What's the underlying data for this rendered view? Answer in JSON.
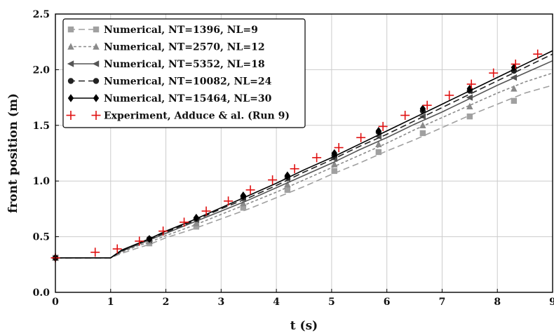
{
  "chart_data": {
    "type": "line",
    "title": "",
    "xlabel": "t (s)",
    "ylabel": "front position (m)",
    "xlim": [
      0,
      9
    ],
    "ylim": [
      0,
      2.5
    ],
    "xticks": [
      "0",
      "1",
      "2",
      "3",
      "4",
      "5",
      "6",
      "7",
      "8",
      "9"
    ],
    "yticks": [
      "0.0",
      "0.5",
      "1.0",
      "1.5",
      "2.0",
      "2.5"
    ],
    "grid": true,
    "legend_position": "top-left",
    "series": [
      {
        "name": "Numerical, NT=1396, NL=9",
        "color": "#a0a0a0",
        "dash": "dashed",
        "marker": "square",
        "x": [
          0,
          1.0,
          1.2,
          1.5,
          1.7,
          2.0,
          2.5,
          3.0,
          3.5,
          4.0,
          4.5,
          5.0,
          5.5,
          6.0,
          6.5,
          7.0,
          7.5,
          8.0,
          8.5,
          9.0
        ],
        "y": [
          0.31,
          0.31,
          0.35,
          0.4,
          0.43,
          0.49,
          0.57,
          0.66,
          0.75,
          0.85,
          0.95,
          1.06,
          1.16,
          1.27,
          1.37,
          1.48,
          1.59,
          1.69,
          1.79,
          1.86
        ],
        "marker_x": [
          0,
          1.7,
          2.55,
          3.4,
          4.2,
          5.05,
          5.85,
          6.65,
          7.5,
          8.3
        ],
        "marker_y": [
          0.31,
          0.44,
          0.59,
          0.76,
          0.92,
          1.09,
          1.26,
          1.43,
          1.58,
          1.72
        ]
      },
      {
        "name": "Numerical, NT=2570, NL=12",
        "color": "#8a8a8a",
        "dash": "dotted",
        "marker": "triangle-up",
        "x": [
          0,
          1.0,
          1.2,
          1.5,
          1.7,
          2.0,
          2.5,
          3.0,
          3.5,
          4.0,
          4.5,
          5.0,
          5.5,
          6.0,
          6.5,
          7.0,
          7.5,
          8.0,
          8.5,
          9.0
        ],
        "y": [
          0.31,
          0.31,
          0.36,
          0.42,
          0.45,
          0.51,
          0.6,
          0.7,
          0.8,
          0.9,
          1.01,
          1.12,
          1.23,
          1.34,
          1.46,
          1.57,
          1.68,
          1.79,
          1.89,
          1.97
        ],
        "marker_x": [
          0,
          1.7,
          2.55,
          3.4,
          4.2,
          5.05,
          5.85,
          6.65,
          7.5,
          8.3
        ],
        "marker_y": [
          0.31,
          0.46,
          0.62,
          0.8,
          0.97,
          1.15,
          1.33,
          1.5,
          1.67,
          1.83
        ]
      },
      {
        "name": "Numerical, NT=5352, NL=18",
        "color": "#555555",
        "dash": "solid",
        "marker": "triangle-left",
        "x": [
          0,
          1.0,
          1.2,
          1.5,
          1.7,
          2.0,
          2.5,
          3.0,
          3.5,
          4.0,
          4.5,
          5.0,
          5.5,
          6.0,
          6.5,
          7.0,
          7.5,
          8.0,
          8.5,
          9.0
        ],
        "y": [
          0.31,
          0.31,
          0.37,
          0.43,
          0.47,
          0.53,
          0.63,
          0.73,
          0.83,
          0.94,
          1.05,
          1.16,
          1.28,
          1.39,
          1.51,
          1.62,
          1.74,
          1.86,
          1.97,
          2.08
        ],
        "marker_x": [
          0,
          1.7,
          2.55,
          3.4,
          4.2,
          5.05,
          5.85,
          6.65,
          7.5,
          8.3
        ],
        "marker_y": [
          0.31,
          0.47,
          0.65,
          0.84,
          1.02,
          1.2,
          1.4,
          1.58,
          1.75,
          1.93
        ]
      },
      {
        "name": "Numerical, NT=10082, NL=24",
        "color": "#222222",
        "dash": "dashed",
        "marker": "circle",
        "x": [
          0,
          1.0,
          1.2,
          1.5,
          1.7,
          2.0,
          2.5,
          3.0,
          3.5,
          4.0,
          4.5,
          5.0,
          5.5,
          6.0,
          6.5,
          7.0,
          7.5,
          8.0,
          8.5,
          9.0
        ],
        "y": [
          0.31,
          0.31,
          0.37,
          0.44,
          0.48,
          0.54,
          0.64,
          0.75,
          0.85,
          0.96,
          1.08,
          1.19,
          1.31,
          1.42,
          1.54,
          1.66,
          1.78,
          1.9,
          2.02,
          2.14
        ],
        "marker_x": [
          0,
          1.7,
          2.55,
          3.4,
          4.2,
          5.05,
          5.85,
          6.65,
          7.5,
          8.3
        ],
        "marker_y": [
          0.31,
          0.48,
          0.66,
          0.86,
          1.04,
          1.23,
          1.44,
          1.63,
          1.81,
          1.99
        ]
      },
      {
        "name": "Numerical, NT=15464, NL=30",
        "color": "#000000",
        "dash": "solid",
        "marker": "diamond",
        "x": [
          0,
          1.0,
          1.2,
          1.5,
          1.7,
          2.0,
          2.5,
          3.0,
          3.5,
          4.0,
          4.5,
          5.0,
          5.5,
          6.0,
          6.5,
          7.0,
          7.5,
          8.0,
          8.5,
          9.0
        ],
        "y": [
          0.31,
          0.31,
          0.38,
          0.44,
          0.48,
          0.55,
          0.65,
          0.76,
          0.87,
          0.98,
          1.1,
          1.21,
          1.33,
          1.45,
          1.57,
          1.69,
          1.81,
          1.93,
          2.05,
          2.17
        ],
        "marker_x": [
          0,
          1.7,
          2.55,
          3.4,
          4.2,
          5.05,
          5.85,
          6.65,
          7.5,
          8.3
        ],
        "marker_y": [
          0.31,
          0.48,
          0.67,
          0.87,
          1.05,
          1.25,
          1.45,
          1.65,
          1.83,
          2.02
        ]
      },
      {
        "name": "Experiment, Adduce & al. (Run 9)",
        "color": "#e01010",
        "dash": "none",
        "marker": "plus",
        "x": [
          0,
          0.72,
          1.12,
          1.52,
          1.95,
          2.33,
          2.73,
          3.13,
          3.53,
          3.93,
          4.33,
          4.73,
          5.13,
          5.53,
          5.93,
          6.33,
          6.73,
          7.13,
          7.53,
          7.93,
          8.33,
          8.73
        ],
        "y": [
          0.31,
          0.36,
          0.39,
          0.46,
          0.55,
          0.63,
          0.73,
          0.82,
          0.92,
          1.01,
          1.11,
          1.21,
          1.3,
          1.39,
          1.49,
          1.59,
          1.68,
          1.77,
          1.87,
          1.97,
          2.05,
          2.14
        ],
        "marker_x": [
          0,
          0.72,
          1.12,
          1.52,
          1.95,
          2.33,
          2.73,
          3.13,
          3.53,
          3.93,
          4.33,
          4.73,
          5.13,
          5.53,
          5.93,
          6.33,
          6.73,
          7.13,
          7.53,
          7.93,
          8.33,
          8.73
        ],
        "marker_y": [
          0.31,
          0.36,
          0.39,
          0.46,
          0.55,
          0.63,
          0.73,
          0.82,
          0.92,
          1.01,
          1.11,
          1.21,
          1.3,
          1.39,
          1.49,
          1.59,
          1.68,
          1.77,
          1.87,
          1.97,
          2.05,
          2.14
        ]
      }
    ]
  }
}
